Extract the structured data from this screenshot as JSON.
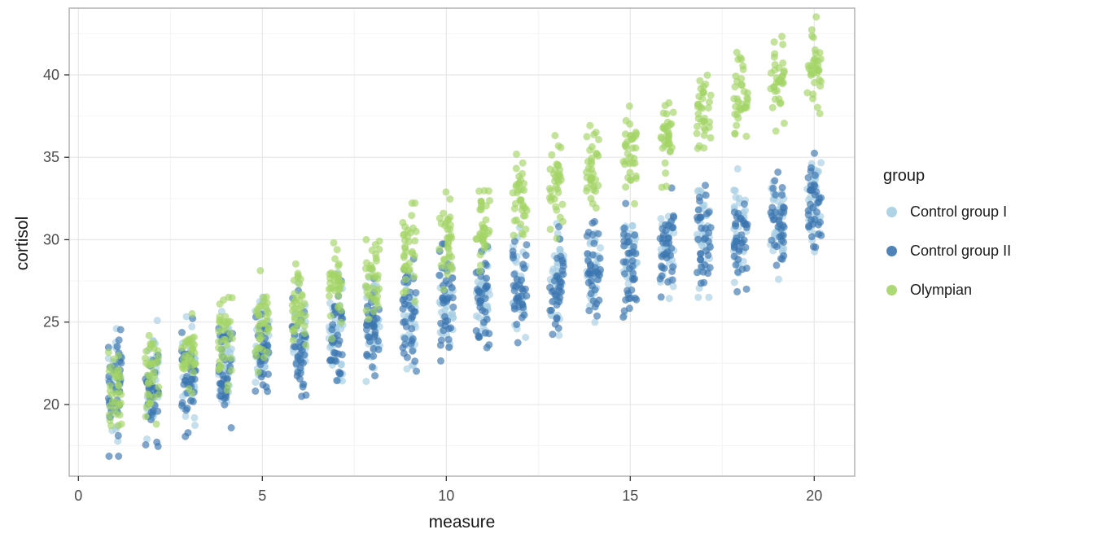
{
  "chart_data": {
    "type": "scatter",
    "title": "",
    "xlabel": "measure",
    "ylabel": "cortisol",
    "xlim": [
      -0.25,
      21.1
    ],
    "ylim": [
      15.65,
      44.05
    ],
    "x_ticks": [
      0,
      5,
      10,
      15,
      20
    ],
    "y_ticks": [
      20,
      25,
      30,
      35,
      40
    ],
    "x_minor": [
      2.5,
      7.5,
      12.5,
      17.5
    ],
    "y_minor": [
      17.5,
      22.5,
      27.5,
      32.5,
      37.5,
      42.5
    ],
    "x": [
      1,
      2,
      3,
      4,
      5,
      6,
      7,
      8,
      9,
      10,
      11,
      12,
      13,
      14,
      15,
      16,
      17,
      18,
      19,
      20
    ],
    "jitter_width": 0.19,
    "point_alpha": 0.65,
    "point_radius": 4.5,
    "n_per_x": 35,
    "grid": true,
    "series": [
      {
        "name": "Control group I",
        "color": "#A6CEE3",
        "sd": 1.5,
        "means": [
          21.0,
          21.5,
          22.1,
          22.7,
          23.3,
          23.8,
          24.4,
          25.0,
          25.5,
          26.1,
          26.7,
          27.2,
          27.8,
          28.4,
          29.0,
          29.5,
          30.1,
          30.7,
          31.2,
          31.8
        ]
      },
      {
        "name": "Control group II",
        "color": "#3B75AF",
        "sd": 1.6,
        "means": [
          20.7,
          21.3,
          21.9,
          22.4,
          23.0,
          23.6,
          24.2,
          24.7,
          25.3,
          25.9,
          26.4,
          27.0,
          27.6,
          28.2,
          28.7,
          29.3,
          29.9,
          30.4,
          31.0,
          31.6
        ]
      },
      {
        "name": "Olympian",
        "color": "#A3D466",
        "sd": 1.3,
        "means": [
          20.9,
          21.9,
          23.0,
          24.0,
          25.0,
          26.0,
          27.1,
          28.1,
          29.1,
          30.1,
          31.2,
          32.2,
          33.2,
          34.2,
          35.3,
          36.3,
          37.3,
          38.3,
          39.4,
          40.4
        ]
      }
    ],
    "legend": {
      "title": "group",
      "position": "right"
    }
  }
}
